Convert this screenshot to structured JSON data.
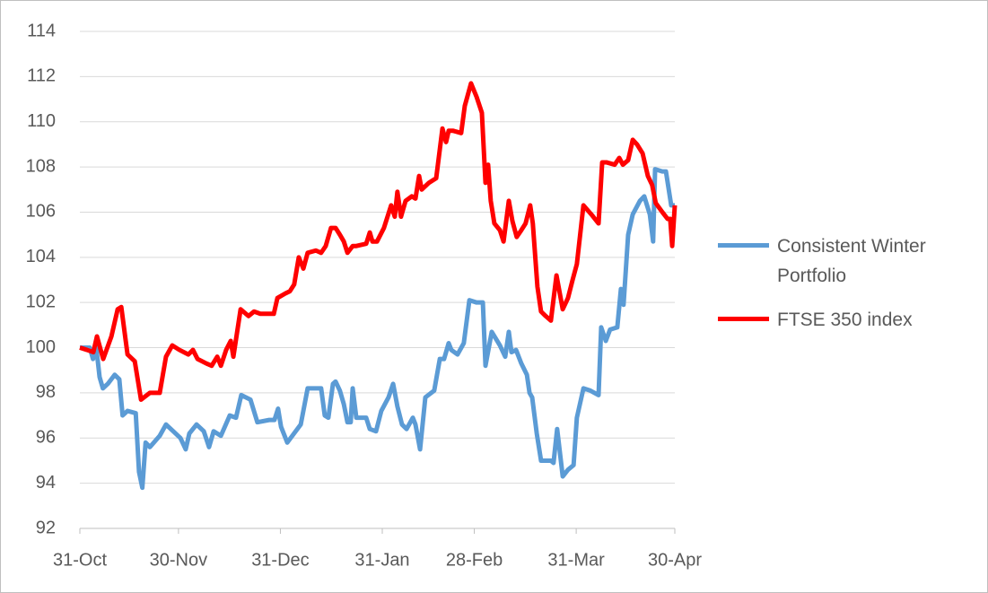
{
  "chart_data": {
    "type": "line",
    "xlim": [
      0,
      181
    ],
    "xticks": [
      {
        "value": 0,
        "label": "31-Oct"
      },
      {
        "value": 30,
        "label": "30-Nov"
      },
      {
        "value": 61,
        "label": "31-Dec"
      },
      {
        "value": 92,
        "label": "31-Jan"
      },
      {
        "value": 120,
        "label": "28-Feb"
      },
      {
        "value": 151,
        "label": "31-Mar"
      },
      {
        "value": 181,
        "label": "30-Apr"
      }
    ],
    "ylim": [
      92,
      114
    ],
    "yticks": [
      92,
      94,
      96,
      98,
      100,
      102,
      104,
      106,
      108,
      110,
      112,
      114
    ],
    "grid": true,
    "legend": "right",
    "series": [
      {
        "name": "Consistent Winter Portfolio",
        "color": "#5b9bd5",
        "x": [
          0,
          3,
          4,
          5,
          6,
          7,
          8.5,
          10.6,
          12,
          13,
          14.5,
          17,
          18,
          19,
          20,
          21.3,
          24.3,
          26.2,
          28.4,
          30.6,
          32.2,
          33.3,
          35.5,
          37.7,
          39.3,
          40.7,
          42.9,
          45.6,
          47.5,
          49.1,
          51.9,
          54,
          57.6,
          59.2,
          60.3,
          61.2,
          63.1,
          67.2,
          69.3,
          71.8,
          73.4,
          74.5,
          75.6,
          77,
          77.8,
          79.1,
          80.3,
          81.4,
          82.4,
          83,
          84.1,
          87.1,
          88.2,
          90.1,
          91.7,
          93.9,
          95.3,
          96.6,
          98,
          99.4,
          101.3,
          102.1,
          103.5,
          105.1,
          107.8,
          109.5,
          110.8,
          112.2,
          113,
          114.9,
          116.8,
          118.5,
          120.7,
          122.6,
          123.4,
          125.3,
          127.8,
          129.4,
          130.5,
          131.3,
          132.7,
          134.3,
          136,
          136.8,
          137.6,
          139,
          140.3,
          143.3,
          144.1,
          145.2,
          146.9,
          148.5,
          150.2,
          151.2,
          153.2,
          155.3,
          157.8,
          158.6,
          160,
          161.3,
          163.5,
          164.6,
          165.4,
          166.8,
          168.2,
          170.4,
          171.7,
          173.4,
          174.4,
          175,
          177.2,
          178.3,
          179.9,
          181
        ],
        "values": [
          100,
          100,
          99.5,
          100,
          98.7,
          98.2,
          98.4,
          98.8,
          98.6,
          97.0,
          97.2,
          97.1,
          94.5,
          93.8,
          95.8,
          95.6,
          96.1,
          96.6,
          96.3,
          96.0,
          95.5,
          96.2,
          96.6,
          96.3,
          95.6,
          96.3,
          96.1,
          97.0,
          96.9,
          97.9,
          97.7,
          96.7,
          96.8,
          96.8,
          97.3,
          96.5,
          95.8,
          96.6,
          98.2,
          98.2,
          98.2,
          97,
          96.9,
          98.4,
          98.5,
          98.1,
          97.5,
          96.7,
          96.7,
          98.2,
          96.9,
          96.9,
          96.4,
          96.3,
          97.2,
          97.8,
          98.4,
          97.4,
          96.6,
          96.4,
          96.9,
          96.6,
          95.5,
          97.8,
          98.1,
          99.5,
          99.5,
          100.2,
          99.9,
          99.7,
          100.2,
          102.1,
          102.0,
          102.0,
          99.2,
          100.7,
          100.1,
          99.6,
          100.7,
          99.8,
          99.9,
          99.3,
          98.8,
          98,
          97.8,
          96.2,
          95.0,
          95.0,
          94.9,
          96.4,
          94.3,
          94.6,
          94.8,
          96.9,
          98.2,
          98.1,
          97.9,
          100.9,
          100.3,
          100.8,
          100.9,
          102.6,
          101.9,
          105.0,
          105.9,
          106.5,
          106.7,
          105.9,
          104.7,
          107.9,
          107.8,
          107.8,
          106.3,
          106.3
        ]
      },
      {
        "name": "FTSE 350 index",
        "color": "#ff0000",
        "x": [
          0,
          2.2,
          4.1,
          5.2,
          7.1,
          9.6,
          11.5,
          12.6,
          14.5,
          16.7,
          18.6,
          21.3,
          24.3,
          26.2,
          28.1,
          30.3,
          33,
          34.4,
          35.8,
          38.5,
          40.1,
          41.8,
          42.9,
          44.5,
          45.9,
          46.7,
          48.9,
          51.3,
          53,
          54.9,
          59,
          60.1,
          62.5,
          63.9,
          65.2,
          66.6,
          68,
          69.3,
          71.8,
          73.4,
          74.8,
          76.4,
          77.8,
          79.1,
          80.3,
          81.4,
          83,
          84.1,
          87.1,
          88.2,
          89,
          90.4,
          92.5,
          94.7,
          95.8,
          96.6,
          97.7,
          99.1,
          101,
          102.1,
          103.2,
          104,
          106.2,
          108.4,
          110.3,
          111.4,
          112.2,
          113.6,
          116,
          117.1,
          119,
          120.7,
          122.3,
          123.4,
          124.2,
          125,
          126.1,
          127.8,
          128.9,
          130.5,
          131.6,
          132.9,
          134.3,
          135.6,
          137,
          137.8,
          139.2,
          140.3,
          141.7,
          143.3,
          145,
          146.9,
          148.5,
          149.9,
          151.2,
          153.2,
          155.6,
          157.8,
          158.9,
          160.3,
          162.7,
          164.1,
          165.2,
          166.8,
          168.2,
          169.5,
          171.2,
          172.8,
          174.1,
          175.2,
          177.2,
          178.8,
          179.6,
          180.2,
          181
        ],
        "values": [
          100,
          99.9,
          99.8,
          100.5,
          99.5,
          100.5,
          101.7,
          101.8,
          99.7,
          99.4,
          97.7,
          98.0,
          98.0,
          99.6,
          100.1,
          99.9,
          99.7,
          99.9,
          99.5,
          99.3,
          99.2,
          99.6,
          99.2,
          99.9,
          100.3,
          99.6,
          101.7,
          101.4,
          101.6,
          101.5,
          101.5,
          102.2,
          102.4,
          102.5,
          102.8,
          104.0,
          103.5,
          104.2,
          104.3,
          104.2,
          104.5,
          105.3,
          105.3,
          105.0,
          104.7,
          104.2,
          104.5,
          104.5,
          104.6,
          105.1,
          104.7,
          104.7,
          105.3,
          106.3,
          105.8,
          106.9,
          105.8,
          106.5,
          106.7,
          106.6,
          107.6,
          107.0,
          107.3,
          107.5,
          109.7,
          109.1,
          109.6,
          109.6,
          109.5,
          110.7,
          111.7,
          111.1,
          110.4,
          107.3,
          108.1,
          106.5,
          105.5,
          105.2,
          104.7,
          106.5,
          105.6,
          104.9,
          105.2,
          105.5,
          106.3,
          105.5,
          102.7,
          101.6,
          101.4,
          101.2,
          103.2,
          101.7,
          102.2,
          103.0,
          103.7,
          106.3,
          105.9,
          105.5,
          108.2,
          108.2,
          108.1,
          108.4,
          108.1,
          108.3,
          109.2,
          109.0,
          108.6,
          107.6,
          107.2,
          106.4,
          106.0,
          105.7,
          105.7,
          104.5,
          106.3
        ]
      }
    ]
  }
}
